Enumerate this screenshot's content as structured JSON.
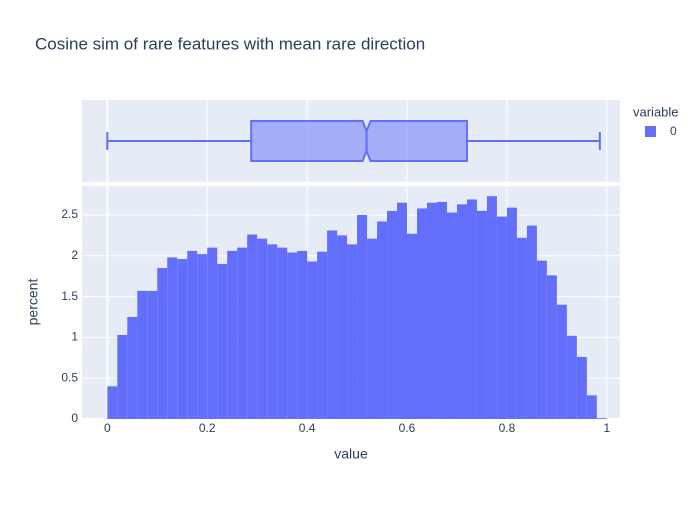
{
  "chart_data": [
    {
      "type": "box",
      "stats": {
        "min": 0.0,
        "q1": 0.288,
        "median": 0.519,
        "q3": 0.72,
        "max": 0.986
      },
      "color": "#636efa"
    },
    {
      "type": "histogram",
      "title": "Cosine sim of rare features with mean rare direction",
      "xlabel": "value",
      "ylabel": "percent",
      "color": "#636efa",
      "bins": [
        0,
        0.02,
        0.04,
        0.06,
        0.08,
        0.1,
        0.12,
        0.14,
        0.16,
        0.18,
        0.2,
        0.22,
        0.24,
        0.26,
        0.28,
        0.3,
        0.32,
        0.34,
        0.36,
        0.38,
        0.4,
        0.42,
        0.44,
        0.46,
        0.48,
        0.5,
        0.52,
        0.54,
        0.56,
        0.58,
        0.6,
        0.62,
        0.64,
        0.66,
        0.68,
        0.7,
        0.72,
        0.74,
        0.76,
        0.78,
        0.8,
        0.82,
        0.84,
        0.86,
        0.88,
        0.9,
        0.92,
        0.94,
        0.96,
        0.98,
        1.0
      ],
      "values": [
        0.4,
        1.03,
        1.25,
        1.57,
        1.57,
        1.85,
        1.98,
        1.96,
        2.06,
        2.02,
        2.1,
        1.9,
        2.06,
        2.1,
        2.26,
        2.21,
        2.14,
        2.1,
        2.04,
        2.06,
        1.93,
        2.05,
        2.31,
        2.25,
        2.14,
        2.5,
        2.21,
        2.42,
        2.55,
        2.65,
        2.27,
        2.58,
        2.65,
        2.66,
        2.53,
        2.63,
        2.69,
        2.55,
        2.73,
        2.48,
        2.59,
        2.22,
        2.37,
        1.94,
        1.76,
        1.4,
        1.02,
        0.76,
        0.29,
        0.01
      ],
      "xlim": [
        -0.0507,
        1.0264
      ],
      "xticks": [
        0,
        0.2,
        0.4,
        0.6,
        0.8,
        1
      ],
      "ylim": [
        0,
        2.855
      ],
      "yticks": [
        0,
        0.5,
        1,
        1.5,
        2,
        2.5
      ],
      "grid": true,
      "legend": {
        "title": "variable",
        "entries": [
          {
            "name": "0",
            "color": "#636efa"
          }
        ]
      }
    }
  ]
}
